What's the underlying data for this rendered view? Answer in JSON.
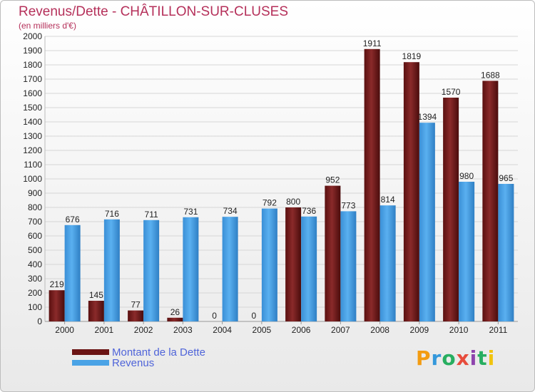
{
  "header": {
    "title": "Revenus/Dette - CHÂTILLON-SUR-CLUSES",
    "subtitle": "(en milliers d'€)"
  },
  "legend": {
    "dette_label": "Montant de la Dette",
    "revenus_label": "Revenus"
  },
  "logo": {
    "letters": [
      "P",
      "r",
      "o",
      "x",
      "i",
      "t",
      "i"
    ],
    "colors": [
      "#f39c12",
      "#3498db",
      "#27ae60",
      "#e74c3c",
      "#8e44ad",
      "#27ae60",
      "#f1c40f"
    ]
  },
  "colors": {
    "dette": "#7a1c1c",
    "revenus": "#4aa3e6",
    "title": "#b5305a",
    "legend_text": "#4f64d9"
  },
  "chart_data": {
    "type": "bar",
    "categories": [
      "2000",
      "2001",
      "2002",
      "2003",
      "2004",
      "2005",
      "2006",
      "2007",
      "2008",
      "2009",
      "2010",
      "2011"
    ],
    "series": [
      {
        "name": "Montant de la Dette",
        "values": [
          219,
          145,
          77,
          26,
          0,
          0,
          800,
          952,
          1911,
          1819,
          1570,
          1688
        ]
      },
      {
        "name": "Revenus",
        "values": [
          676,
          716,
          711,
          731,
          734,
          792,
          736,
          773,
          814,
          1394,
          980,
          965
        ]
      }
    ],
    "title": "Revenus/Dette - CHÂTILLON-SUR-CLUSES",
    "ylabel": "(en milliers d'€)",
    "ylim": [
      0,
      2000
    ],
    "ytick_step": 100,
    "grid": true,
    "legend_position": "bottom-left"
  }
}
